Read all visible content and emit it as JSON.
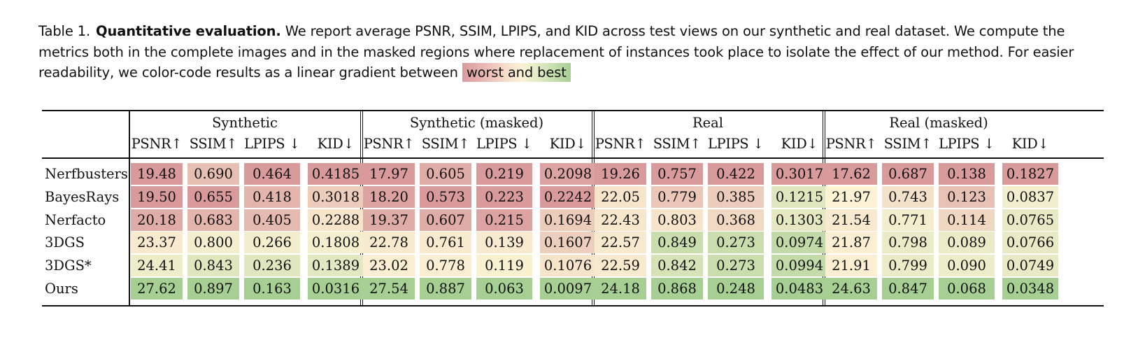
{
  "caption": {
    "table_number": "Table 1.",
    "bold_title": "Quantitative evaluation.",
    "text": " We report average PSNR, SSIM, LPIPS, and KID across test views on our synthetic and real dataset. We compute the metrics both in the complete images and in the masked regions where replacement of instances took place to isolate the effect of our method. For easier readability, we color-code results as a linear gradient between ",
    "gradient_label": "worst and best"
  },
  "colors": {
    "worst": "#d99a9c",
    "mid": "#fbf3d4",
    "best": "#a8cf93"
  },
  "table": {
    "groups": [
      "Synthetic",
      "Synthetic (masked)",
      "Real",
      "Real (masked)"
    ],
    "metrics": [
      "PSNR↑",
      "SSIM↑",
      "LPIPS ↓",
      "KID↓"
    ],
    "methods": [
      "Nerfbusters",
      "BayesRays",
      "Nerfacto",
      "3DGS",
      "3DGS*",
      "Ours"
    ],
    "values": [
      [
        "19.48",
        "0.690",
        "0.464",
        "0.4185",
        "17.97",
        "0.605",
        "0.219",
        "0.2098",
        "19.26",
        "0.757",
        "0.422",
        "0.3017",
        "17.62",
        "0.687",
        "0.138",
        "0.1827"
      ],
      [
        "19.50",
        "0.655",
        "0.418",
        "0.3018",
        "18.20",
        "0.573",
        "0.223",
        "0.2242",
        "22.05",
        "0.779",
        "0.385",
        "0.1215",
        "21.97",
        "0.743",
        "0.123",
        "0.0837"
      ],
      [
        "20.18",
        "0.683",
        "0.405",
        "0.2288",
        "19.37",
        "0.607",
        "0.215",
        "0.1694",
        "22.43",
        "0.803",
        "0.368",
        "0.1303",
        "21.54",
        "0.771",
        "0.114",
        "0.0765"
      ],
      [
        "23.37",
        "0.800",
        "0.266",
        "0.1808",
        "22.78",
        "0.761",
        "0.139",
        "0.1607",
        "22.57",
        "0.849",
        "0.273",
        "0.0974",
        "21.87",
        "0.798",
        "0.089",
        "0.0766"
      ],
      [
        "24.41",
        "0.843",
        "0.236",
        "0.1389",
        "23.02",
        "0.778",
        "0.119",
        "0.1076",
        "22.59",
        "0.842",
        "0.273",
        "0.0994",
        "21.91",
        "0.799",
        "0.090",
        "0.0749"
      ],
      [
        "27.62",
        "0.897",
        "0.163",
        "0.0316",
        "27.54",
        "0.887",
        "0.063",
        "0.0097",
        "24.18",
        "0.868",
        "0.248",
        "0.0483",
        "24.63",
        "0.847",
        "0.068",
        "0.0348"
      ]
    ],
    "quality": [
      [
        0.0,
        0.2,
        0.0,
        0.0,
        0.0,
        0.1,
        0.0,
        0.05,
        0.0,
        0.0,
        0.0,
        0.0,
        0.0,
        0.0,
        0.0,
        0.0
      ],
      [
        0.0,
        0.0,
        0.15,
        0.28,
        0.05,
        0.0,
        0.0,
        0.0,
        0.42,
        0.25,
        0.28,
        0.66,
        0.5,
        0.4,
        0.22,
        0.55
      ],
      [
        0.1,
        0.15,
        0.18,
        0.42,
        0.1,
        0.1,
        0.05,
        0.28,
        0.44,
        0.42,
        0.35,
        0.64,
        0.45,
        0.55,
        0.34,
        0.62
      ],
      [
        0.45,
        0.55,
        0.55,
        0.54,
        0.45,
        0.45,
        0.45,
        0.3,
        0.45,
        0.8,
        0.8,
        0.85,
        0.48,
        0.6,
        0.6,
        0.62
      ],
      [
        0.58,
        0.66,
        0.66,
        0.65,
        0.48,
        0.48,
        0.52,
        0.42,
        0.45,
        0.72,
        0.8,
        0.84,
        0.48,
        0.6,
        0.58,
        0.62
      ],
      [
        1.0,
        1.0,
        1.0,
        1.0,
        1.0,
        1.0,
        1.0,
        1.0,
        1.0,
        1.0,
        1.0,
        1.0,
        1.0,
        1.0,
        1.0,
        1.0
      ]
    ]
  }
}
